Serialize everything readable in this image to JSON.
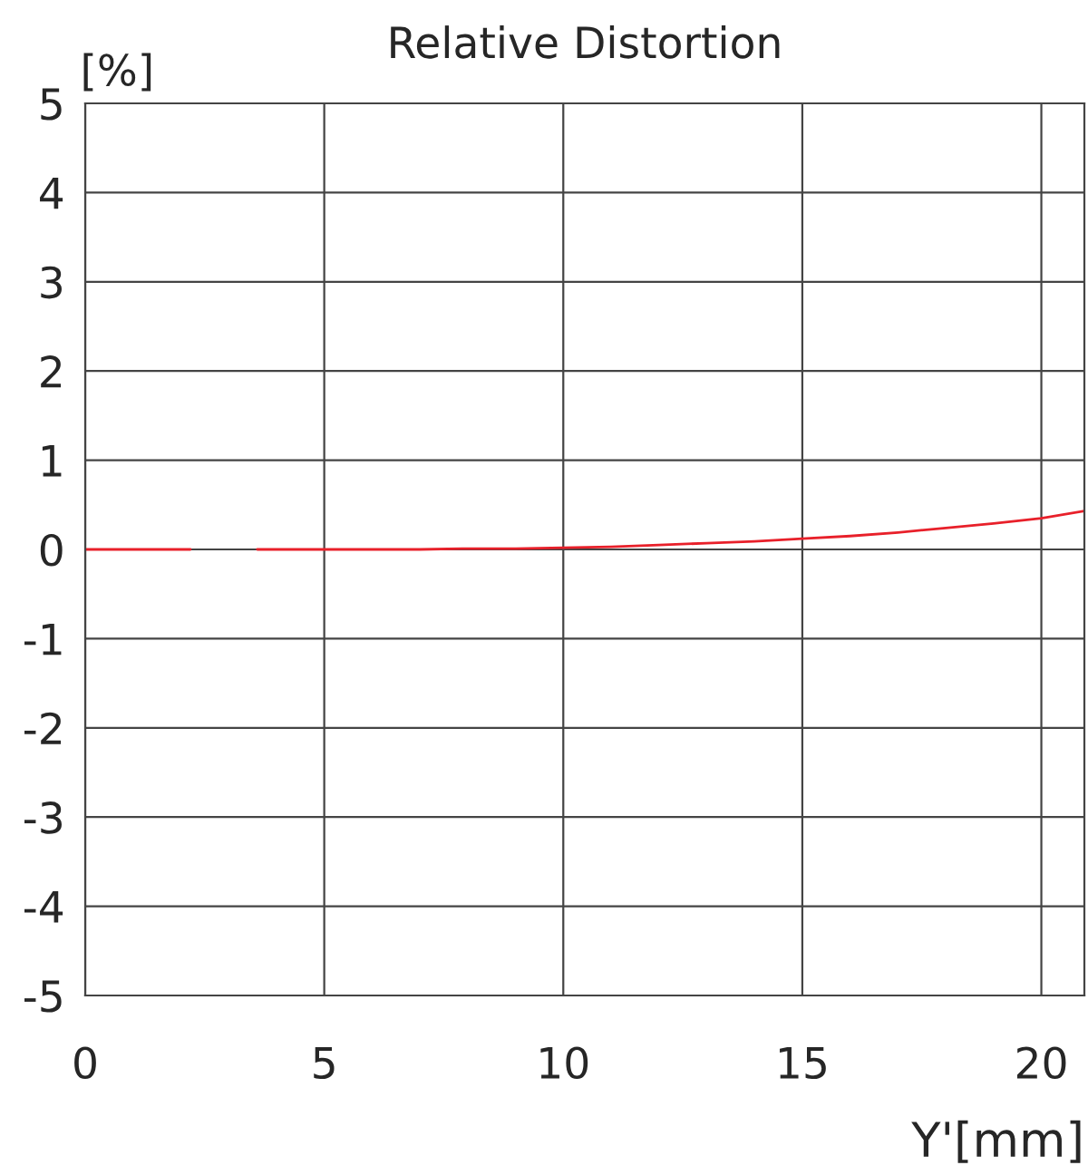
{
  "chart_data": {
    "type": "line",
    "title": "Relative Distortion",
    "xlabel": "Y'[mm]",
    "ylabel": "[%]",
    "series": [
      {
        "color": "#e8202a",
        "x": [
          0,
          1,
          2.2,
          2.3,
          3.5,
          3.6,
          5,
          6,
          7,
          8,
          9,
          10,
          11,
          12,
          13,
          14,
          15,
          16,
          17,
          18,
          19,
          20,
          20.9
        ],
        "values": [
          0,
          0,
          0,
          null,
          null,
          0,
          0,
          0,
          0,
          0.01,
          0.01,
          0.02,
          0.03,
          0.05,
          0.07,
          0.09,
          0.12,
          0.15,
          0.19,
          0.24,
          0.29,
          0.35,
          0.43
        ]
      }
    ],
    "xlim": [
      0,
      20.9
    ],
    "ylim": [
      -5,
      5
    ],
    "xticks": [
      0,
      5,
      10,
      15,
      20
    ],
    "yticks": [
      -5,
      -4,
      -3,
      -2,
      -1,
      0,
      1,
      2,
      3,
      4,
      5
    ],
    "grid": true,
    "legend": false,
    "line_style": "solid",
    "marker": "none"
  }
}
